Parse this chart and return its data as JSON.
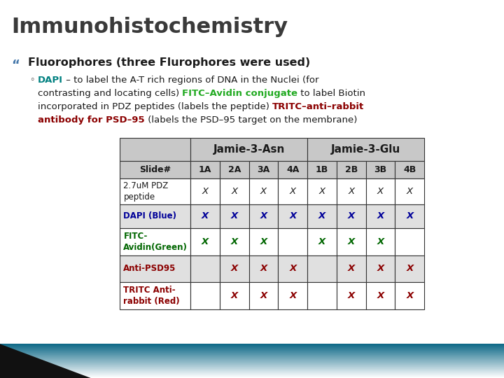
{
  "title": "Immunohistochemistry",
  "title_color": "#3a3a3a",
  "title_fontsize": 22,
  "bullet_text": "Fluorophores (three Flurophores were used)",
  "bullet_fontsize": 11.5,
  "bullet_color": "#1a1a1a",
  "table_header1": "Jamie-3-Asn",
  "table_header2": "Jamie-3-Glu",
  "col_labels": [
    "Slide#",
    "1A",
    "2A",
    "3A",
    "4A",
    "1B",
    "2B",
    "3B",
    "4B"
  ],
  "rows": [
    {
      "label": "2.7uM PDZ\npeptide",
      "label_color": "#1a1a1a",
      "label_bold": false,
      "values": [
        "X",
        "X",
        "X",
        "X",
        "X",
        "X",
        "X",
        "X"
      ],
      "value_colors": [
        "#1a1a1a",
        "#1a1a1a",
        "#1a1a1a",
        "#1a1a1a",
        "#1a1a1a",
        "#1a1a1a",
        "#1a1a1a",
        "#1a1a1a"
      ],
      "value_bolds": [
        false,
        false,
        false,
        false,
        false,
        false,
        false,
        false
      ],
      "row_bg": "#ffffff"
    },
    {
      "label": "DAPI (Blue)",
      "label_color": "#000099",
      "label_bold": true,
      "values": [
        "X",
        "X",
        "X",
        "X",
        "X",
        "X",
        "X",
        "X"
      ],
      "value_colors": [
        "#000099",
        "#000099",
        "#000099",
        "#000099",
        "#000099",
        "#000099",
        "#000099",
        "#000099"
      ],
      "value_bolds": [
        true,
        true,
        true,
        true,
        true,
        true,
        true,
        true
      ],
      "row_bg": "#e0e0e0"
    },
    {
      "label": "FITC-\nAvidin(Green)",
      "label_color": "#006600",
      "label_bold": true,
      "values": [
        "X",
        "X",
        "X",
        "",
        "X",
        "X",
        "X",
        ""
      ],
      "value_colors": [
        "#006600",
        "#006600",
        "#006600",
        "#006600",
        "#006600",
        "#006600",
        "#006600",
        "#006600"
      ],
      "value_bolds": [
        true,
        true,
        true,
        false,
        true,
        true,
        true,
        false
      ],
      "row_bg": "#ffffff"
    },
    {
      "label": "Anti-PSD95",
      "label_color": "#8b0000",
      "label_bold": true,
      "values": [
        "",
        "X",
        "X",
        "X",
        "",
        "X",
        "X",
        "X"
      ],
      "value_colors": [
        "#8b0000",
        "#8b0000",
        "#8b0000",
        "#8b0000",
        "#8b0000",
        "#8b0000",
        "#8b0000",
        "#8b0000"
      ],
      "value_bolds": [
        true,
        true,
        true,
        true,
        true,
        true,
        true,
        true
      ],
      "row_bg": "#e0e0e0"
    },
    {
      "label": "TRITC Anti-\nrabbit (Red)",
      "label_color": "#8b0000",
      "label_bold": true,
      "values": [
        "",
        "X",
        "X",
        "X",
        "",
        "X",
        "X",
        "X"
      ],
      "value_colors": [
        "#8b0000",
        "#8b0000",
        "#8b0000",
        "#8b0000",
        "#8b0000",
        "#8b0000",
        "#8b0000",
        "#8b0000"
      ],
      "value_bolds": [
        true,
        true,
        true,
        true,
        true,
        true,
        true,
        true
      ],
      "row_bg": "#ffffff"
    }
  ],
  "bg_color": "#ffffff",
  "table_header_bg": "#c8c8c8",
  "gradient_color": "#006080",
  "body_lines": [
    [
      {
        "text": "DAPI",
        "color": "#008080",
        "bold": true
      },
      {
        "text": " – to label the A-T rich regions of DNA in the Nuclei (for",
        "color": "#1a1a1a",
        "bold": false
      }
    ],
    [
      {
        "text": "contrasting and locating cells) ",
        "color": "#1a1a1a",
        "bold": false
      },
      {
        "text": "FITC–Avidin conjugate",
        "color": "#22aa22",
        "bold": true
      },
      {
        "text": " to label Biotin",
        "color": "#1a1a1a",
        "bold": false
      }
    ],
    [
      {
        "text": "incorporated in PDZ peptides (labels the peptide) ",
        "color": "#1a1a1a",
        "bold": false
      },
      {
        "text": "TRITC–anti–rabbit",
        "color": "#8b0000",
        "bold": true
      }
    ],
    [
      {
        "text": "antibody for PSD–95",
        "color": "#8b0000",
        "bold": true
      },
      {
        "text": " (labels the PSD–95 target on the membrane)",
        "color": "#1a1a1a",
        "bold": false
      }
    ]
  ]
}
